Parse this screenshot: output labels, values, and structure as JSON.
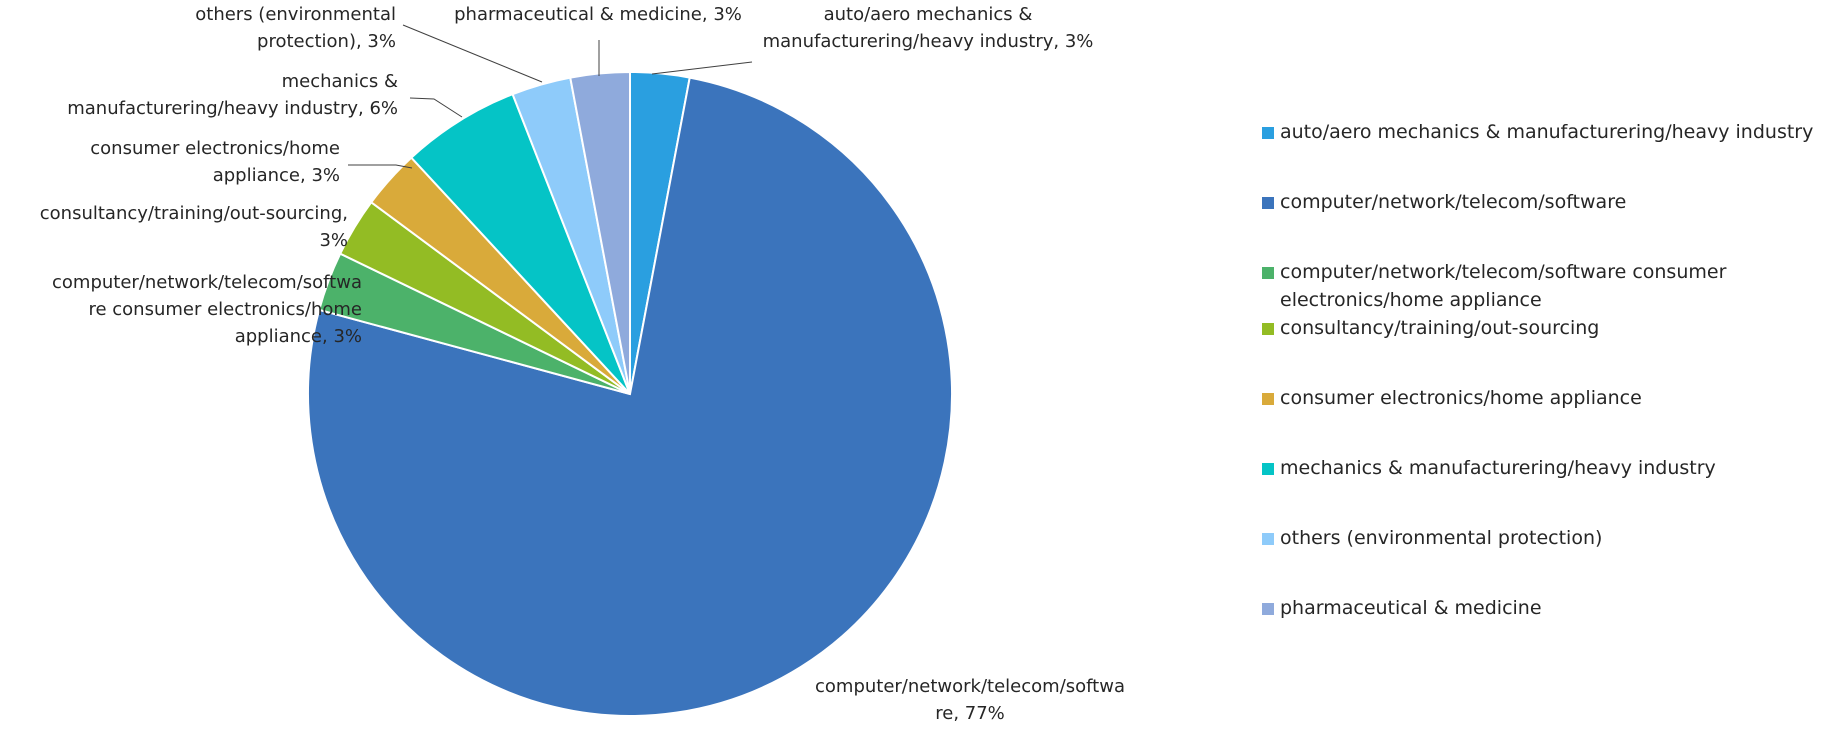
{
  "chart_data": {
    "type": "pie",
    "title": "",
    "slices": [
      {
        "label": "auto/aero mechanics & manufacturering/heavy industry",
        "value": 3,
        "color": "#2a9fe0",
        "data_label": [
          "auto/aero mechanics &",
          "manufacturering/heavy industry, 3%"
        ]
      },
      {
        "label": "computer/network/telecom/software",
        "value": 77,
        "color": "#3b74bc",
        "data_label": [
          "computer/network/telecom/softwa",
          "re, 77%"
        ]
      },
      {
        "label": "computer/network/telecom/software consumer electronics/home appliance",
        "value": 3,
        "color": "#4cb26a",
        "data_label": [
          "computer/network/telecom/softwa",
          "re consumer electronics/home",
          "appliance, 3%"
        ]
      },
      {
        "label": "consultancy/training/out-sourcing",
        "value": 3,
        "color": "#93bc24",
        "data_label": [
          "consultancy/training/out-sourcing,",
          "3%"
        ]
      },
      {
        "label": "consumer electronics/home appliance",
        "value": 3,
        "color": "#d9aa3a",
        "data_label": [
          "consumer electronics/home",
          "appliance, 3%"
        ]
      },
      {
        "label": "mechanics & manufacturering/heavy industry",
        "value": 6,
        "color": "#05c4c6",
        "data_label": [
          "mechanics &",
          "manufacturering/heavy industry, 6%"
        ]
      },
      {
        "label": "others (environmental protection)",
        "value": 3,
        "color": "#8ecbfa",
        "data_label": [
          "others (environmental",
          "protection), 3%"
        ]
      },
      {
        "label": "pharmaceutical & medicine",
        "value": 3,
        "color": "#8faadc",
        "data_label": [
          "pharmaceutical & medicine, 3%"
        ]
      }
    ],
    "legend_position": "right"
  }
}
